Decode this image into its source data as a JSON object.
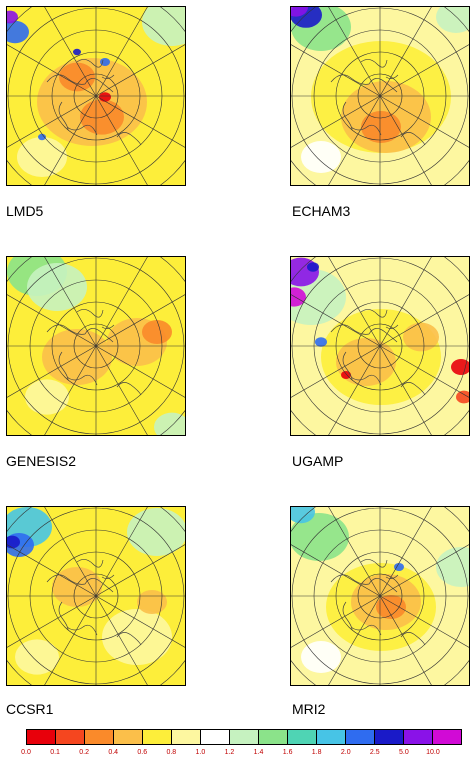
{
  "panels": [
    {
      "name": "LMD5"
    },
    {
      "name": "ECHAM3"
    },
    {
      "name": "GENESIS2"
    },
    {
      "name": "UGAMP"
    },
    {
      "name": "CCSR1"
    },
    {
      "name": "MRI2"
    }
  ],
  "colorbar": {
    "colors": [
      "#e8000b",
      "#f5461f",
      "#fa8a2a",
      "#fbbf4a",
      "#fdee3a",
      "#fdf7a0",
      "#ffffff",
      "#c6f2c0",
      "#8be38a",
      "#4fd4b4",
      "#47c4e6",
      "#2f6cf0",
      "#1a1ac8",
      "#8a12e8",
      "#d10ad6"
    ],
    "ticks": [
      "0.0",
      "0.1",
      "0.2",
      "0.4",
      "0.6",
      "0.8",
      "1.0",
      "1.2",
      "1.4",
      "1.6",
      "1.8",
      "2.0",
      "2.5",
      "5.0",
      "10.0"
    ]
  }
}
